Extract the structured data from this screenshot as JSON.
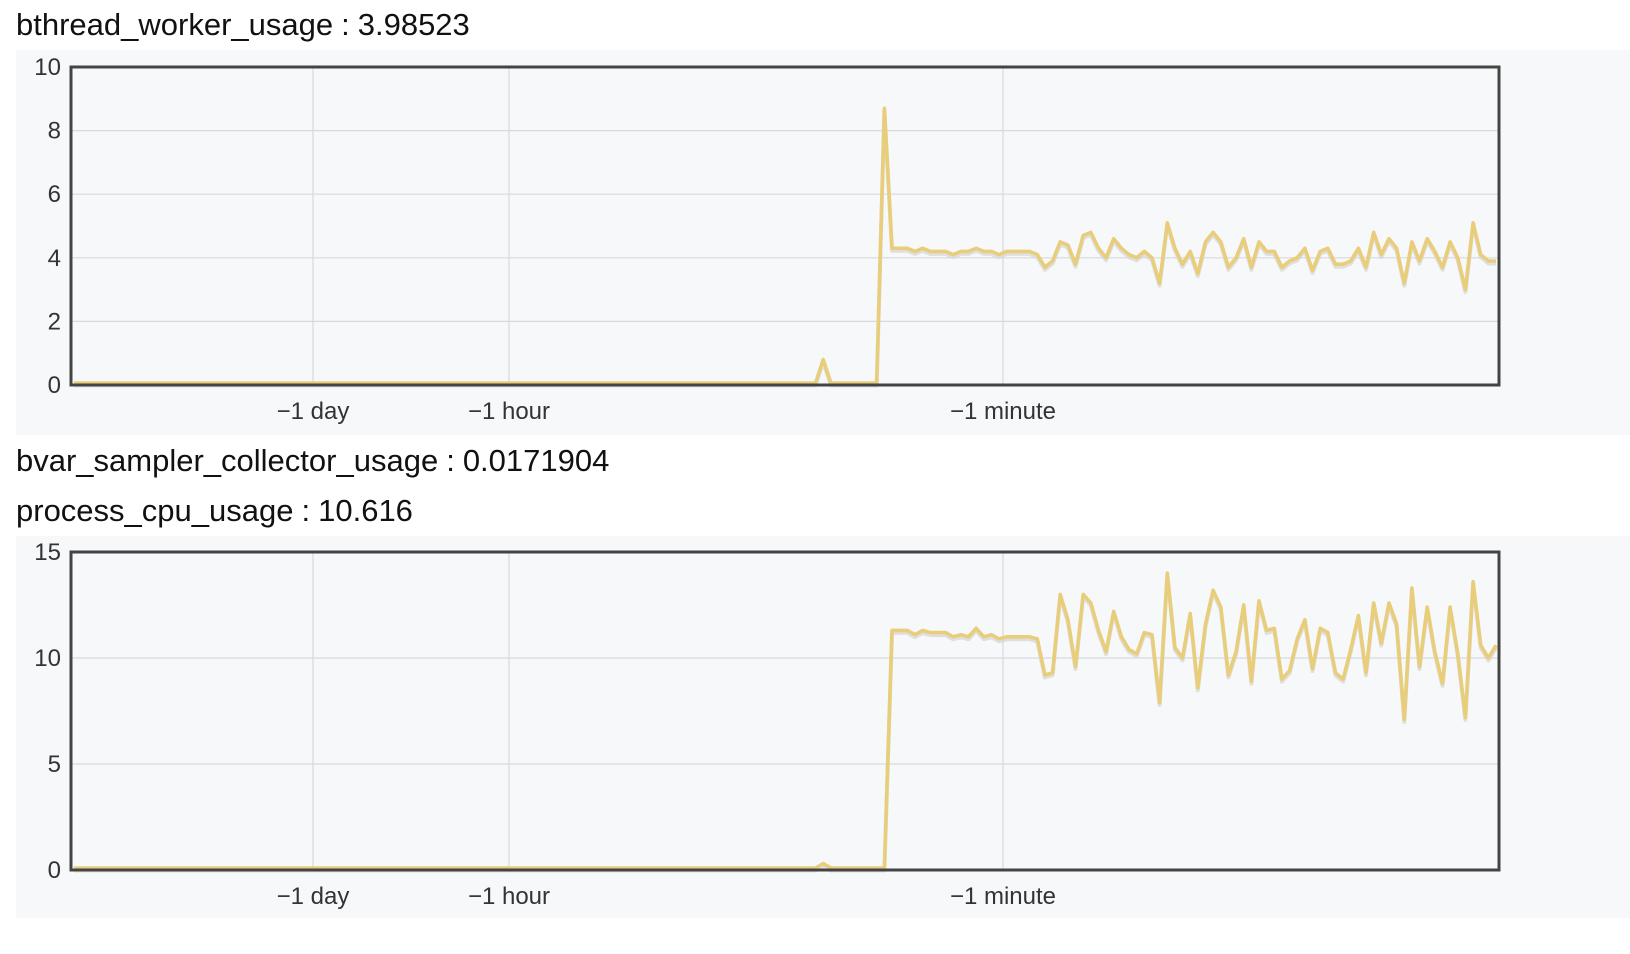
{
  "variables": [
    {
      "name": "bthread_worker_usage",
      "separator": ":",
      "value": "3.98523"
    },
    {
      "name": "bvar_sampler_collector_usage",
      "separator": ":",
      "value": "0.0171904"
    },
    {
      "name": "process_cpu_usage",
      "separator": ":",
      "value": "10.616"
    }
  ],
  "colors": {
    "line": "#e8cd7a",
    "shadow": "#d4d4d4",
    "grid": "#d9d9d9",
    "frame": "#444444",
    "panel": "#f7f8fa"
  },
  "chart_data": [
    {
      "type": "line",
      "title": "",
      "xlabel": "",
      "ylabel": "",
      "ylim": [
        0,
        10
      ],
      "yticks": [
        "0",
        "2",
        "4",
        "6",
        "8",
        "10"
      ],
      "xticks": [
        "−1 day",
        "−1 hour",
        "−1 minute"
      ],
      "grid": true,
      "series": [
        {
          "values": [
            0,
            0,
            0,
            0,
            0,
            0,
            0,
            0,
            0,
            0,
            0,
            0,
            0,
            0,
            0,
            0,
            0,
            0,
            0,
            0,
            0,
            0,
            0,
            0,
            0,
            0,
            0,
            0,
            0,
            0,
            0,
            0,
            0,
            0,
            0,
            0,
            0,
            0,
            0,
            0,
            0,
            0,
            0,
            0,
            0,
            0,
            0,
            0,
            0,
            0,
            0,
            0,
            0,
            0,
            0,
            0,
            0,
            0,
            0,
            0,
            0,
            0,
            0,
            0,
            0,
            0,
            0,
            0,
            0,
            0,
            0,
            0,
            0,
            0,
            0,
            0,
            0,
            0,
            0,
            0,
            0,
            0,
            0,
            0,
            0,
            0,
            0,
            0,
            0,
            0,
            0,
            0,
            0,
            0,
            0,
            0,
            0,
            0,
            0.8,
            0,
            0,
            0,
            0,
            0,
            0,
            0,
            8.7,
            4.3,
            4.3,
            4.3,
            4.2,
            4.3,
            4.2,
            4.2,
            4.2,
            4.1,
            4.2,
            4.2,
            4.3,
            4.2,
            4.2,
            4.1,
            4.2,
            4.2,
            4.2,
            4.2,
            4.1,
            3.7,
            3.9,
            4.5,
            4.4,
            3.8,
            4.7,
            4.8,
            4.3,
            4.0,
            4.6,
            4.3,
            4.1,
            4.0,
            4.2,
            4.0,
            3.2,
            5.1,
            4.3,
            3.8,
            4.2,
            3.5,
            4.5,
            4.8,
            4.5,
            3.7,
            4.0,
            4.6,
            3.7,
            4.5,
            4.2,
            4.2,
            3.7,
            3.9,
            4.0,
            4.3,
            3.6,
            4.2,
            4.3,
            3.8,
            3.8,
            3.9,
            4.3,
            3.7,
            4.8,
            4.1,
            4.6,
            4.3,
            3.2,
            4.5,
            3.9,
            4.6,
            4.2,
            3.7,
            4.5,
            4.0,
            3.0,
            5.1,
            4.1,
            3.9,
            3.9
          ]
        }
      ]
    },
    {
      "type": "line",
      "title": "",
      "xlabel": "",
      "ylabel": "",
      "ylim": [
        0,
        15
      ],
      "yticks": [
        "0",
        "5",
        "10",
        "15"
      ],
      "xticks": [
        "−1 day",
        "−1 hour",
        "−1 minute"
      ],
      "grid": true,
      "series": [
        {
          "values": [
            0,
            0,
            0,
            0,
            0,
            0,
            0,
            0,
            0,
            0,
            0,
            0,
            0,
            0,
            0,
            0,
            0,
            0,
            0,
            0,
            0,
            0,
            0,
            0,
            0,
            0,
            0,
            0,
            0,
            0,
            0,
            0,
            0,
            0,
            0,
            0,
            0,
            0,
            0,
            0,
            0,
            0,
            0,
            0,
            0,
            0,
            0,
            0,
            0,
            0,
            0,
            0,
            0,
            0,
            0,
            0,
            0,
            0,
            0,
            0,
            0,
            0,
            0,
            0,
            0,
            0,
            0,
            0,
            0,
            0,
            0,
            0,
            0,
            0,
            0,
            0,
            0,
            0,
            0,
            0,
            0,
            0,
            0,
            0,
            0,
            0,
            0,
            0,
            0,
            0,
            0,
            0,
            0,
            0,
            0,
            0,
            0,
            0,
            0.3,
            0,
            0,
            0,
            0,
            0,
            0,
            0,
            0,
            11.3,
            11.3,
            11.3,
            11.1,
            11.3,
            11.2,
            11.2,
            11.2,
            11.0,
            11.1,
            11.0,
            11.4,
            11.0,
            11.1,
            10.9,
            11.0,
            11.0,
            11.0,
            11.0,
            10.9,
            9.2,
            9.3,
            13.0,
            11.8,
            9.6,
            13.0,
            12.6,
            11.3,
            10.3,
            12.2,
            11.0,
            10.4,
            10.2,
            11.2,
            11.1,
            7.9,
            14.0,
            10.5,
            10.0,
            12.1,
            8.6,
            11.6,
            13.2,
            12.4,
            9.2,
            10.3,
            12.5,
            8.9,
            12.7,
            11.3,
            11.4,
            9.0,
            9.4,
            10.9,
            11.8,
            9.5,
            11.4,
            11.2,
            9.3,
            9.0,
            10.4,
            12.0,
            9.3,
            12.6,
            10.7,
            12.6,
            11.6,
            7.1,
            13.3,
            9.6,
            12.4,
            10.3,
            8.8,
            12.4,
            10.2,
            7.2,
            13.6,
            10.6,
            10.0,
            10.6
          ]
        }
      ]
    }
  ]
}
